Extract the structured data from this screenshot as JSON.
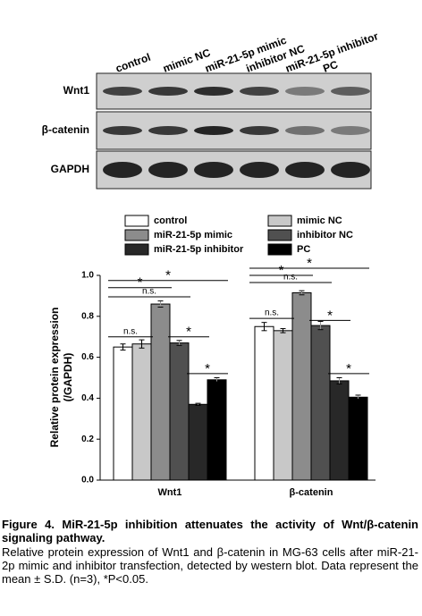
{
  "blot": {
    "lanes": [
      "control",
      "mimic NC",
      "miR-21-5p mimic",
      "inhibitor NC",
      "miR-21-5p inhibitor",
      "PC"
    ],
    "rows": [
      "Wnt1",
      "β-catenin",
      "GAPDH"
    ]
  },
  "chart_data": {
    "type": "bar",
    "y_label": [
      "Relative protein expression",
      "(/GAPDH)"
    ],
    "categories": [
      "Wnt1",
      "β-catenin"
    ],
    "series": [
      {
        "name": "control",
        "color": "#ffffff",
        "values": [
          0.65,
          0.75
        ],
        "errors": [
          0.015,
          0.02
        ]
      },
      {
        "name": "mimic NC",
        "color": "#c8c8c8",
        "values": [
          0.665,
          0.73
        ],
        "errors": [
          0.02,
          0.01
        ]
      },
      {
        "name": "miR-21-5p mimic",
        "color": "#8c8c8c",
        "values": [
          0.86,
          0.915
        ],
        "errors": [
          0.015,
          0.01
        ]
      },
      {
        "name": "inhibitor NC",
        "color": "#505050",
        "values": [
          0.67,
          0.755
        ],
        "errors": [
          0.012,
          0.02
        ]
      },
      {
        "name": "miR-21-5p inhibitor",
        "color": "#282828",
        "values": [
          0.37,
          0.485
        ],
        "errors": [
          0.005,
          0.015
        ]
      },
      {
        "name": "PC",
        "color": "#000000",
        "values": [
          0.49,
          0.405
        ],
        "errors": [
          0.01,
          0.01
        ]
      }
    ],
    "ylim": [
      0,
      1.0
    ],
    "yticks": [
      {
        "value": 0,
        "label": "0.0"
      },
      0.2,
      0.4,
      0.6,
      0.8,
      {
        "value": 1.0,
        "label": "1.0"
      }
    ],
    "annotations": [
      {
        "text": "n.s.",
        "group": 0,
        "from": 0,
        "to": 1,
        "y": 0.7
      },
      {
        "text": "*",
        "group": 0,
        "from": 3,
        "to": 4,
        "y": 0.7
      },
      {
        "text": "*",
        "group": 0,
        "from": 4,
        "to": 5,
        "y": 0.52
      },
      {
        "text": "n.s.",
        "group": 0,
        "from": 0,
        "to": 3,
        "y": 0.895
      },
      {
        "text": "*",
        "group": 0,
        "from": 0,
        "to": 2,
        "y": 0.94
      },
      {
        "text": "*",
        "group": 0,
        "from": 0,
        "to": 5,
        "y": 0.975
      },
      {
        "text": "n.s.",
        "group": 1,
        "from": 0,
        "to": 1,
        "y": 0.79
      },
      {
        "text": "*",
        "group": 1,
        "from": 3,
        "to": 4,
        "y": 0.78
      },
      {
        "text": "*",
        "group": 1,
        "from": 4,
        "to": 5,
        "y": 0.52
      },
      {
        "text": "n.s.",
        "group": 1,
        "from": 0,
        "to": 3,
        "y": 0.965
      },
      {
        "text": "*",
        "group": 1,
        "from": 0,
        "to": 2,
        "y": 1.0
      },
      {
        "text": "*",
        "group": 1,
        "from": 0,
        "to": 5,
        "y": 1.035
      }
    ]
  },
  "caption": {
    "title": "Figure 4. MiR-21-5p inhibition attenuates the activity of Wnt/β-catenin signaling pathway.",
    "body": "Relative protein expression of Wnt1 and β-catenin in MG-63 cells after miR-21-2p mimic and inhibitor transfection, detected by western blot. Data represent the mean ± S.D. (n=3), *P<0.05."
  }
}
